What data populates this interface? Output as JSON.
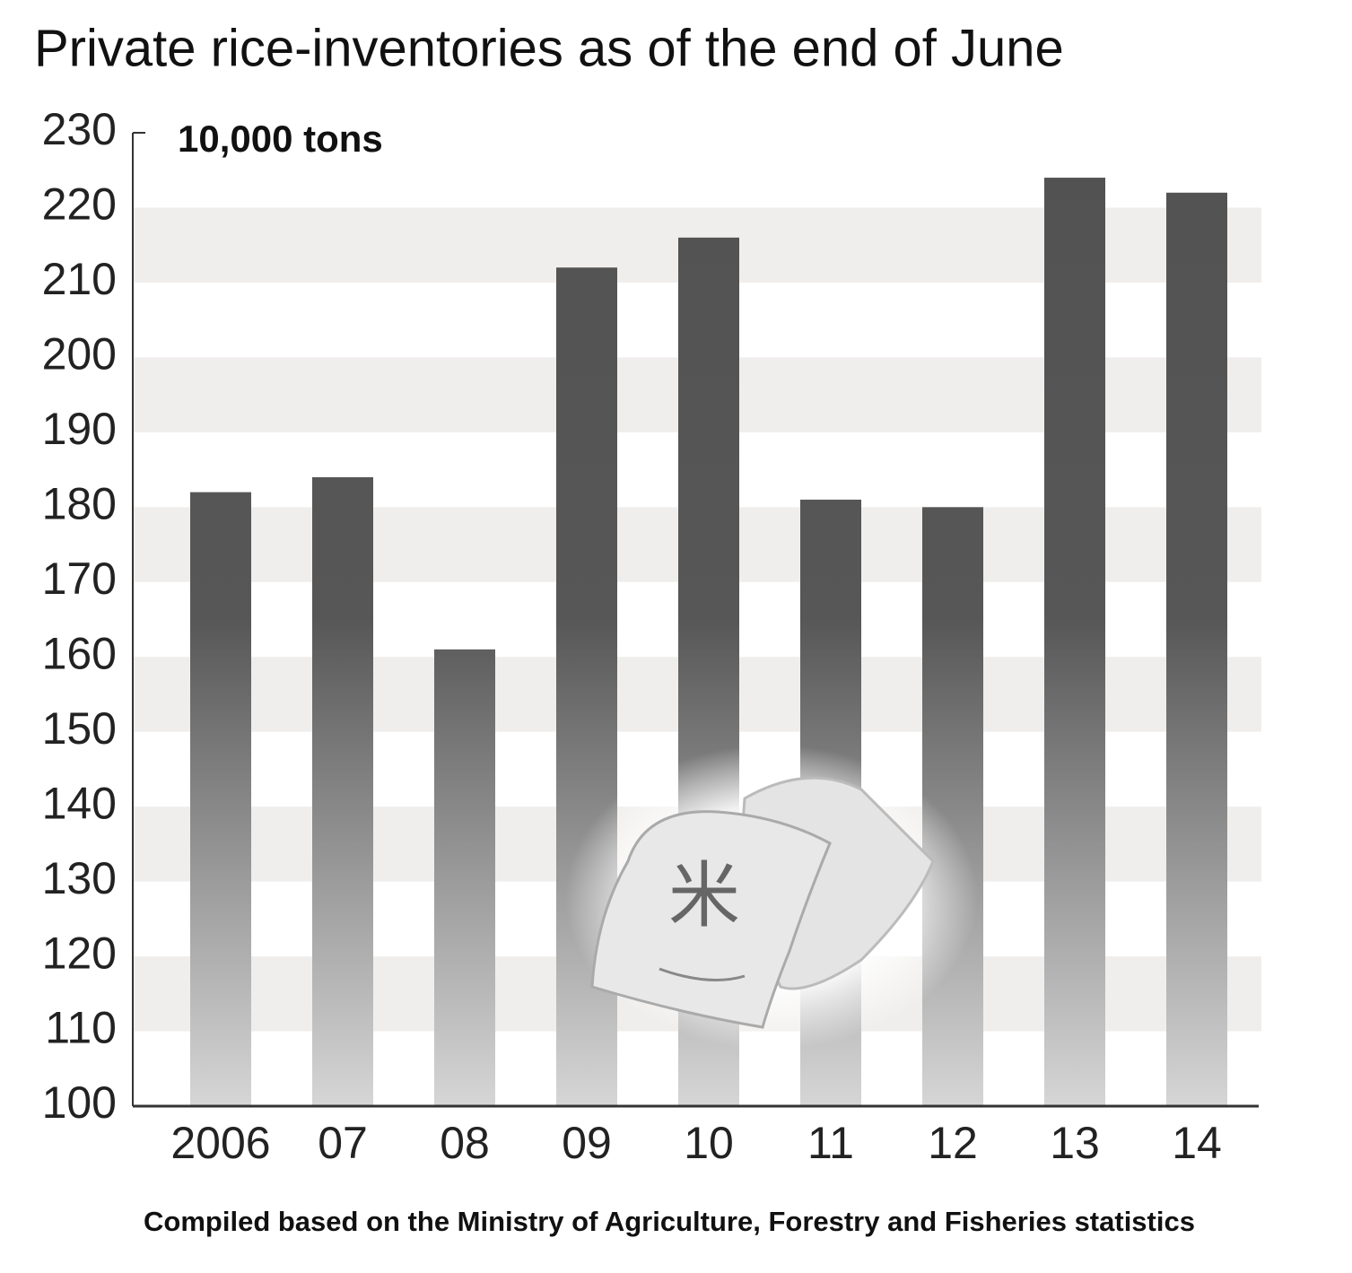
{
  "chart_data": {
    "type": "bar",
    "title": "Private rice-inventories as of the end of June",
    "unit_label": "10,000 tons",
    "source": "Compiled based on the Ministry of Agriculture, Forestry and Fisheries statistics",
    "illustration_label": "米",
    "categories": [
      "2006",
      "07",
      "08",
      "09",
      "10",
      "11",
      "12",
      "13",
      "14"
    ],
    "values": [
      182,
      184,
      161,
      212,
      216,
      181,
      180,
      224,
      222
    ],
    "color": "#555555",
    "ylim": [
      100,
      230
    ],
    "yticks": [
      100,
      110,
      120,
      130,
      140,
      150,
      160,
      170,
      180,
      190,
      200,
      210,
      220,
      230
    ],
    "banded_background": true
  }
}
